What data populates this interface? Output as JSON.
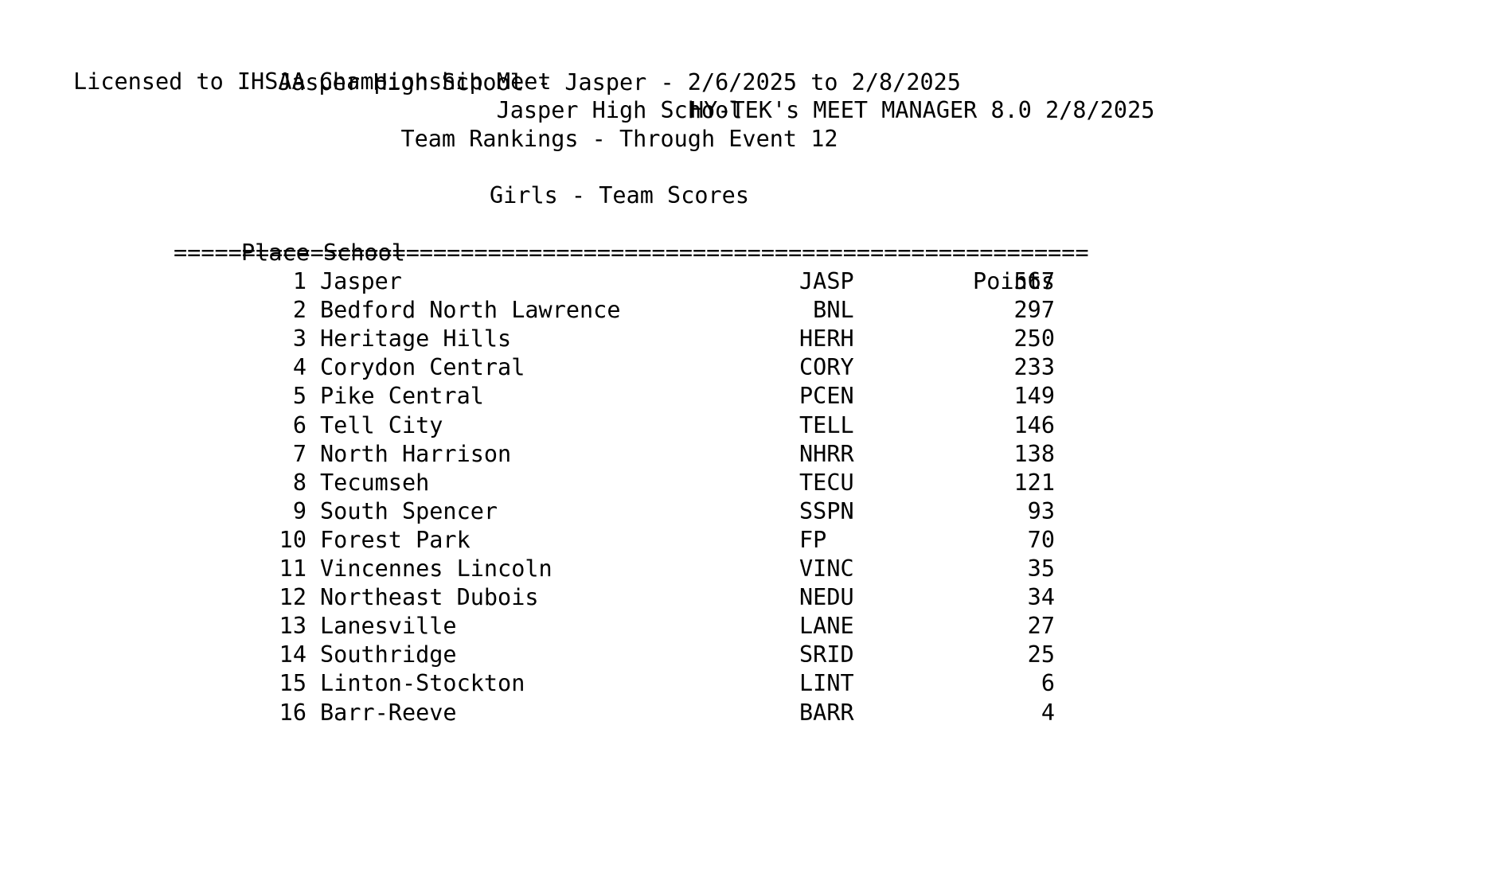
{
  "header": {
    "license": "Licensed to IHSAA Championship Meet",
    "software": "HY-TEK's MEET MANAGER 8.0 2/8/2025",
    "meet_info": "Jasper High School - Jasper - 2/6/2025 to 2/8/2025",
    "host_school": "Jasper High School",
    "report_title": "Team Rankings - Through Event 12"
  },
  "section": {
    "title": "Girls - Team Scores",
    "place_school_label": "Place School",
    "points_label": "Points",
    "separator": "==================================================================="
  },
  "table": {
    "rows": [
      {
        "place": "1",
        "school": "Jasper",
        "abbr": "JASP",
        "points": "567"
      },
      {
        "place": "2",
        "school": "Bedford North Lawrence",
        "abbr": " BNL",
        "points": "297"
      },
      {
        "place": "3",
        "school": "Heritage Hills",
        "abbr": "HERH",
        "points": "250"
      },
      {
        "place": "4",
        "school": "Corydon Central",
        "abbr": "CORY",
        "points": "233"
      },
      {
        "place": "5",
        "school": "Pike Central",
        "abbr": "PCEN",
        "points": "149"
      },
      {
        "place": "6",
        "school": "Tell City",
        "abbr": "TELL",
        "points": "146"
      },
      {
        "place": "7",
        "school": "North Harrison",
        "abbr": "NHRR",
        "points": "138"
      },
      {
        "place": "8",
        "school": "Tecumseh",
        "abbr": "TECU",
        "points": "121"
      },
      {
        "place": "9",
        "school": "South Spencer",
        "abbr": "SSPN",
        "points": "93"
      },
      {
        "place": "10",
        "school": "Forest Park",
        "abbr": "FP",
        "points": "70"
      },
      {
        "place": "11",
        "school": "Vincennes Lincoln",
        "abbr": "VINC",
        "points": "35"
      },
      {
        "place": "12",
        "school": "Northeast Dubois",
        "abbr": "NEDU",
        "points": "34"
      },
      {
        "place": "13",
        "school": "Lanesville",
        "abbr": "LANE",
        "points": "27"
      },
      {
        "place": "14",
        "school": "Southridge",
        "abbr": "SRID",
        "points": "25"
      },
      {
        "place": "15",
        "school": "Linton-Stockton",
        "abbr": "LINT",
        "points": "6"
      },
      {
        "place": "16",
        "school": "Barr-Reeve",
        "abbr": "BARR",
        "points": "4"
      }
    ]
  },
  "colors": {
    "text": "#000000",
    "background": "#ffffff"
  }
}
